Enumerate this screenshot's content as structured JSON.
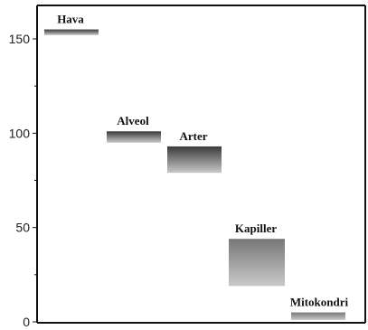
{
  "chart_data": {
    "type": "bar",
    "title": "",
    "xlabel": "",
    "ylabel": "",
    "ylim": [
      0,
      170
    ],
    "yticks": [
      0,
      50,
      100,
      150
    ],
    "grid": false,
    "legend": "none",
    "categories": [
      "Hava",
      "Alveol",
      "Arter",
      "Kapiller",
      "Mitokondri"
    ],
    "ranges": [
      {
        "label": "Hava",
        "low": 152,
        "high": 155
      },
      {
        "label": "Alveol",
        "low": 95,
        "high": 101
      },
      {
        "label": "Arter",
        "low": 79,
        "high": 93
      },
      {
        "label": "Kapiller",
        "low": 19,
        "high": 44
      },
      {
        "label": "Mitokondri",
        "low": 1,
        "high": 5
      }
    ],
    "colors": {
      "axis": "#111111",
      "bar_dark": "#3a3a3a",
      "bar_mid": "#777777",
      "bar_light": "#c9c9c9"
    }
  }
}
